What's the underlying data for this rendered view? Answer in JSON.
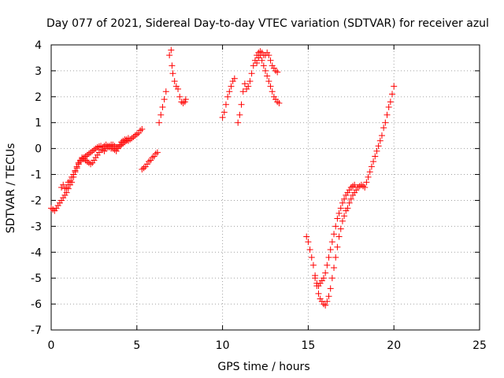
{
  "chart_data": {
    "type": "scatter",
    "title": "Day 077 of 2021, Sidereal Day-to-day VTEC variation (SDTVAR) for receiver azul",
    "xlabel": "GPS time / hours",
    "ylabel": "SDTVAR / TECUs",
    "xlim": [
      0,
      25
    ],
    "ylim": [
      -7,
      4
    ],
    "xticks": [
      "0",
      "5",
      "10",
      "15",
      "20",
      "25"
    ],
    "yticks": [
      "4",
      "3",
      "2",
      "1",
      "0",
      "-1",
      "-2",
      "-3",
      "-4",
      "-5",
      "-6",
      "-7"
    ],
    "grid": true,
    "marker": "+",
    "color": "#ff0000",
    "series": [
      {
        "points": [
          [
            0.0,
            -2.3
          ],
          [
            0.1,
            -2.35
          ],
          [
            0.2,
            -2.4
          ],
          [
            0.3,
            -2.3
          ],
          [
            0.4,
            -2.2
          ],
          [
            0.5,
            -2.1
          ],
          [
            0.6,
            -2.0
          ],
          [
            0.7,
            -1.9
          ],
          [
            0.8,
            -1.8
          ],
          [
            0.9,
            -1.7
          ],
          [
            1.0,
            -1.55
          ],
          [
            1.1,
            -1.4
          ],
          [
            1.2,
            -1.3
          ],
          [
            1.3,
            -1.1
          ],
          [
            1.4,
            -0.9
          ],
          [
            1.5,
            -0.75
          ],
          [
            1.6,
            -0.6
          ],
          [
            1.7,
            -0.5
          ],
          [
            1.8,
            -0.4
          ],
          [
            1.9,
            -0.35
          ],
          [
            2.0,
            -0.3
          ],
          [
            2.1,
            -0.25
          ],
          [
            2.2,
            -0.2
          ],
          [
            2.3,
            -0.15
          ],
          [
            2.4,
            -0.1
          ],
          [
            2.5,
            -0.05
          ],
          [
            2.6,
            0.0
          ],
          [
            2.7,
            0.05
          ],
          [
            2.8,
            0.08
          ],
          [
            2.9,
            0.1
          ],
          [
            0.6,
            -1.5
          ],
          [
            0.7,
            -1.4
          ],
          [
            0.8,
            -1.55
          ],
          [
            0.9,
            -1.5
          ],
          [
            1.0,
            -1.3
          ],
          [
            1.1,
            -1.25
          ],
          [
            1.2,
            -1.1
          ],
          [
            1.3,
            -1.0
          ],
          [
            1.4,
            -0.85
          ],
          [
            1.5,
            -0.7
          ],
          [
            1.6,
            -0.55
          ],
          [
            1.7,
            -0.45
          ],
          [
            1.8,
            -0.35
          ],
          [
            1.9,
            -0.4
          ],
          [
            2.0,
            -0.45
          ],
          [
            2.1,
            -0.5
          ],
          [
            2.2,
            -0.55
          ],
          [
            2.3,
            -0.6
          ],
          [
            2.4,
            -0.55
          ],
          [
            2.5,
            -0.45
          ],
          [
            2.6,
            -0.35
          ],
          [
            2.7,
            -0.25
          ],
          [
            2.8,
            -0.15
          ],
          [
            2.9,
            -0.05
          ],
          [
            3.0,
            0.05
          ],
          [
            3.1,
            0.1
          ],
          [
            3.2,
            0.15
          ],
          [
            3.3,
            0.1
          ],
          [
            3.4,
            0.05
          ],
          [
            3.5,
            0.0
          ],
          [
            3.6,
            0.0
          ],
          [
            3.7,
            -0.05
          ],
          [
            3.8,
            -0.1
          ],
          [
            3.9,
            0.0
          ],
          [
            4.0,
            0.1
          ],
          [
            4.1,
            0.15
          ],
          [
            4.2,
            0.2
          ],
          [
            4.3,
            0.25
          ],
          [
            4.4,
            0.3
          ],
          [
            4.5,
            0.3
          ],
          [
            4.6,
            0.35
          ],
          [
            4.7,
            0.4
          ],
          [
            4.8,
            0.45
          ],
          [
            4.9,
            0.5
          ],
          [
            5.0,
            0.55
          ],
          [
            5.1,
            0.6
          ],
          [
            5.2,
            0.7
          ],
          [
            5.3,
            0.75
          ],
          [
            3.0,
            -0.05
          ],
          [
            3.1,
            -0.1
          ],
          [
            3.2,
            0.0
          ],
          [
            3.3,
            0.05
          ],
          [
            3.4,
            0.1
          ],
          [
            3.5,
            0.15
          ],
          [
            3.6,
            0.15
          ],
          [
            3.7,
            0.1
          ],
          [
            3.8,
            0.05
          ],
          [
            3.9,
            0.05
          ],
          [
            4.0,
            0.15
          ],
          [
            4.1,
            0.25
          ],
          [
            4.2,
            0.3
          ],
          [
            4.3,
            0.35
          ],
          [
            4.4,
            0.35
          ],
          [
            4.5,
            0.4
          ],
          [
            5.3,
            -0.8
          ],
          [
            5.4,
            -0.75
          ],
          [
            5.5,
            -0.7
          ],
          [
            5.6,
            -0.6
          ],
          [
            5.7,
            -0.5
          ],
          [
            5.8,
            -0.45
          ],
          [
            5.9,
            -0.35
          ],
          [
            6.0,
            -0.3
          ],
          [
            6.1,
            -0.2
          ],
          [
            6.2,
            -0.15
          ],
          [
            6.3,
            1.0
          ],
          [
            6.4,
            1.3
          ],
          [
            6.5,
            1.6
          ],
          [
            6.6,
            1.9
          ],
          [
            6.7,
            2.2
          ],
          [
            6.9,
            3.6
          ],
          [
            7.0,
            3.8
          ],
          [
            7.05,
            3.2
          ],
          [
            7.1,
            2.9
          ],
          [
            7.2,
            2.6
          ],
          [
            7.3,
            2.4
          ],
          [
            7.4,
            2.3
          ],
          [
            7.5,
            2.0
          ],
          [
            7.6,
            1.8
          ],
          [
            7.7,
            1.75
          ],
          [
            7.8,
            1.8
          ],
          [
            7.85,
            1.9
          ],
          [
            10.0,
            1.2
          ],
          [
            10.1,
            1.4
          ],
          [
            10.2,
            1.7
          ],
          [
            10.3,
            2.0
          ],
          [
            10.4,
            2.2
          ],
          [
            10.5,
            2.4
          ],
          [
            10.6,
            2.6
          ],
          [
            10.7,
            2.7
          ],
          [
            10.9,
            1.0
          ],
          [
            11.0,
            1.3
          ],
          [
            11.1,
            1.7
          ],
          [
            11.2,
            2.2
          ],
          [
            11.3,
            2.5
          ],
          [
            11.4,
            2.3
          ],
          [
            11.5,
            2.4
          ],
          [
            11.6,
            2.6
          ],
          [
            11.7,
            2.9
          ],
          [
            11.8,
            3.2
          ],
          [
            11.9,
            3.4
          ],
          [
            12.0,
            3.6
          ],
          [
            12.1,
            3.7
          ],
          [
            12.2,
            3.75
          ],
          [
            12.3,
            3.7
          ],
          [
            12.4,
            3.6
          ],
          [
            12.5,
            3.6
          ],
          [
            12.6,
            3.7
          ],
          [
            12.7,
            3.6
          ],
          [
            12.8,
            3.4
          ],
          [
            12.9,
            3.2
          ],
          [
            13.0,
            3.1
          ],
          [
            13.1,
            3.0
          ],
          [
            13.2,
            2.95
          ],
          [
            12.0,
            3.3
          ],
          [
            12.1,
            3.5
          ],
          [
            12.2,
            3.6
          ],
          [
            12.3,
            3.4
          ],
          [
            12.4,
            3.2
          ],
          [
            12.5,
            3.0
          ],
          [
            12.6,
            2.8
          ],
          [
            12.7,
            2.6
          ],
          [
            12.8,
            2.4
          ],
          [
            12.9,
            2.2
          ],
          [
            13.0,
            2.0
          ],
          [
            13.1,
            1.9
          ],
          [
            13.2,
            1.8
          ],
          [
            13.3,
            1.75
          ],
          [
            14.9,
            -3.4
          ],
          [
            15.0,
            -3.6
          ],
          [
            15.1,
            -3.9
          ],
          [
            15.2,
            -4.2
          ],
          [
            15.3,
            -4.5
          ],
          [
            15.4,
            -4.9
          ],
          [
            15.5,
            -5.3
          ],
          [
            15.6,
            -5.6
          ],
          [
            15.7,
            -5.8
          ],
          [
            15.8,
            -5.9
          ],
          [
            15.9,
            -6.0
          ],
          [
            16.0,
            -6.05
          ],
          [
            16.1,
            -5.9
          ],
          [
            16.2,
            -5.7
          ],
          [
            16.3,
            -5.4
          ],
          [
            16.4,
            -5.0
          ],
          [
            16.5,
            -4.6
          ],
          [
            16.6,
            -4.2
          ],
          [
            16.7,
            -3.8
          ],
          [
            16.8,
            -3.4
          ],
          [
            16.9,
            -3.1
          ],
          [
            17.0,
            -2.8
          ],
          [
            17.1,
            -2.6
          ],
          [
            17.2,
            -2.4
          ],
          [
            17.3,
            -2.3
          ],
          [
            17.4,
            -2.1
          ],
          [
            17.5,
            -1.95
          ],
          [
            17.6,
            -1.8
          ],
          [
            17.7,
            -1.7
          ],
          [
            17.8,
            -1.6
          ],
          [
            17.9,
            -1.5
          ],
          [
            18.0,
            -1.45
          ],
          [
            18.1,
            -1.4
          ],
          [
            18.2,
            -1.45
          ],
          [
            18.3,
            -1.5
          ],
          [
            15.4,
            -5.0
          ],
          [
            15.5,
            -5.2
          ],
          [
            15.6,
            -5.3
          ],
          [
            15.7,
            -5.2
          ],
          [
            15.8,
            -5.1
          ],
          [
            15.9,
            -5.0
          ],
          [
            16.0,
            -4.8
          ],
          [
            16.1,
            -4.5
          ],
          [
            16.2,
            -4.2
          ],
          [
            16.3,
            -3.9
          ],
          [
            16.4,
            -3.6
          ],
          [
            16.5,
            -3.3
          ],
          [
            16.6,
            -3.0
          ],
          [
            16.7,
            -2.7
          ],
          [
            16.8,
            -2.5
          ],
          [
            16.9,
            -2.3
          ],
          [
            17.0,
            -2.1
          ],
          [
            17.1,
            -1.95
          ],
          [
            17.2,
            -1.8
          ],
          [
            17.3,
            -1.7
          ],
          [
            17.4,
            -1.6
          ],
          [
            17.5,
            -1.5
          ],
          [
            17.6,
            -1.45
          ],
          [
            17.7,
            -1.4
          ],
          [
            18.4,
            -1.3
          ],
          [
            18.5,
            -1.1
          ],
          [
            18.6,
            -0.9
          ],
          [
            18.7,
            -0.7
          ],
          [
            18.8,
            -0.5
          ],
          [
            18.9,
            -0.3
          ],
          [
            19.0,
            -0.1
          ],
          [
            19.1,
            0.1
          ],
          [
            19.2,
            0.3
          ],
          [
            19.3,
            0.5
          ],
          [
            19.4,
            0.8
          ],
          [
            19.5,
            1.0
          ],
          [
            19.6,
            1.3
          ],
          [
            19.7,
            1.6
          ],
          [
            19.8,
            1.8
          ],
          [
            19.9,
            2.1
          ],
          [
            20.0,
            2.4
          ]
        ]
      }
    ]
  }
}
